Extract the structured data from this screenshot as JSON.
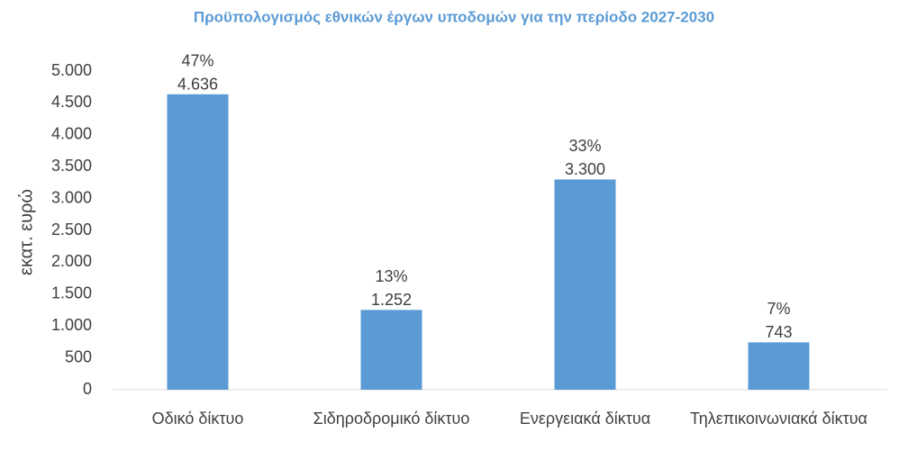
{
  "chart_data": {
    "type": "bar",
    "title": "Προϋπολογισμός εθνικών έργων υποδομών για την περίοδο 2027-2030",
    "y_label": "εκατ. ευρώ",
    "categories": [
      "Οδικό δίκτυο",
      "Σιδηροδρομικό δίκτυο",
      "Ενεργειακά δίκτυα",
      "Τηλεπικοινωνιακά δίκτυα"
    ],
    "values": [
      4636,
      1252,
      3300,
      743
    ],
    "value_labels": [
      "4.636",
      "1.252",
      "3.300",
      "743"
    ],
    "annotations": [
      "47%",
      "13%",
      "33%",
      "7%"
    ],
    "color": "#5b9bd5",
    "ylim": [
      0,
      5000
    ],
    "yticks": [
      0,
      500,
      {
        "value": 1000,
        "label": "1.000"
      },
      {
        "value": 1500,
        "label": "1.500"
      },
      {
        "value": 2000,
        "label": "2.000"
      },
      {
        "value": 2500,
        "label": "2.500"
      },
      {
        "value": 3000,
        "label": "3.000"
      },
      {
        "value": 3500,
        "label": "3.500"
      },
      {
        "value": 4000,
        "label": "4.000"
      },
      {
        "value": 4500,
        "label": "4.500"
      },
      {
        "value": 5000,
        "label": "5.000"
      }
    ],
    "grid": false
  }
}
